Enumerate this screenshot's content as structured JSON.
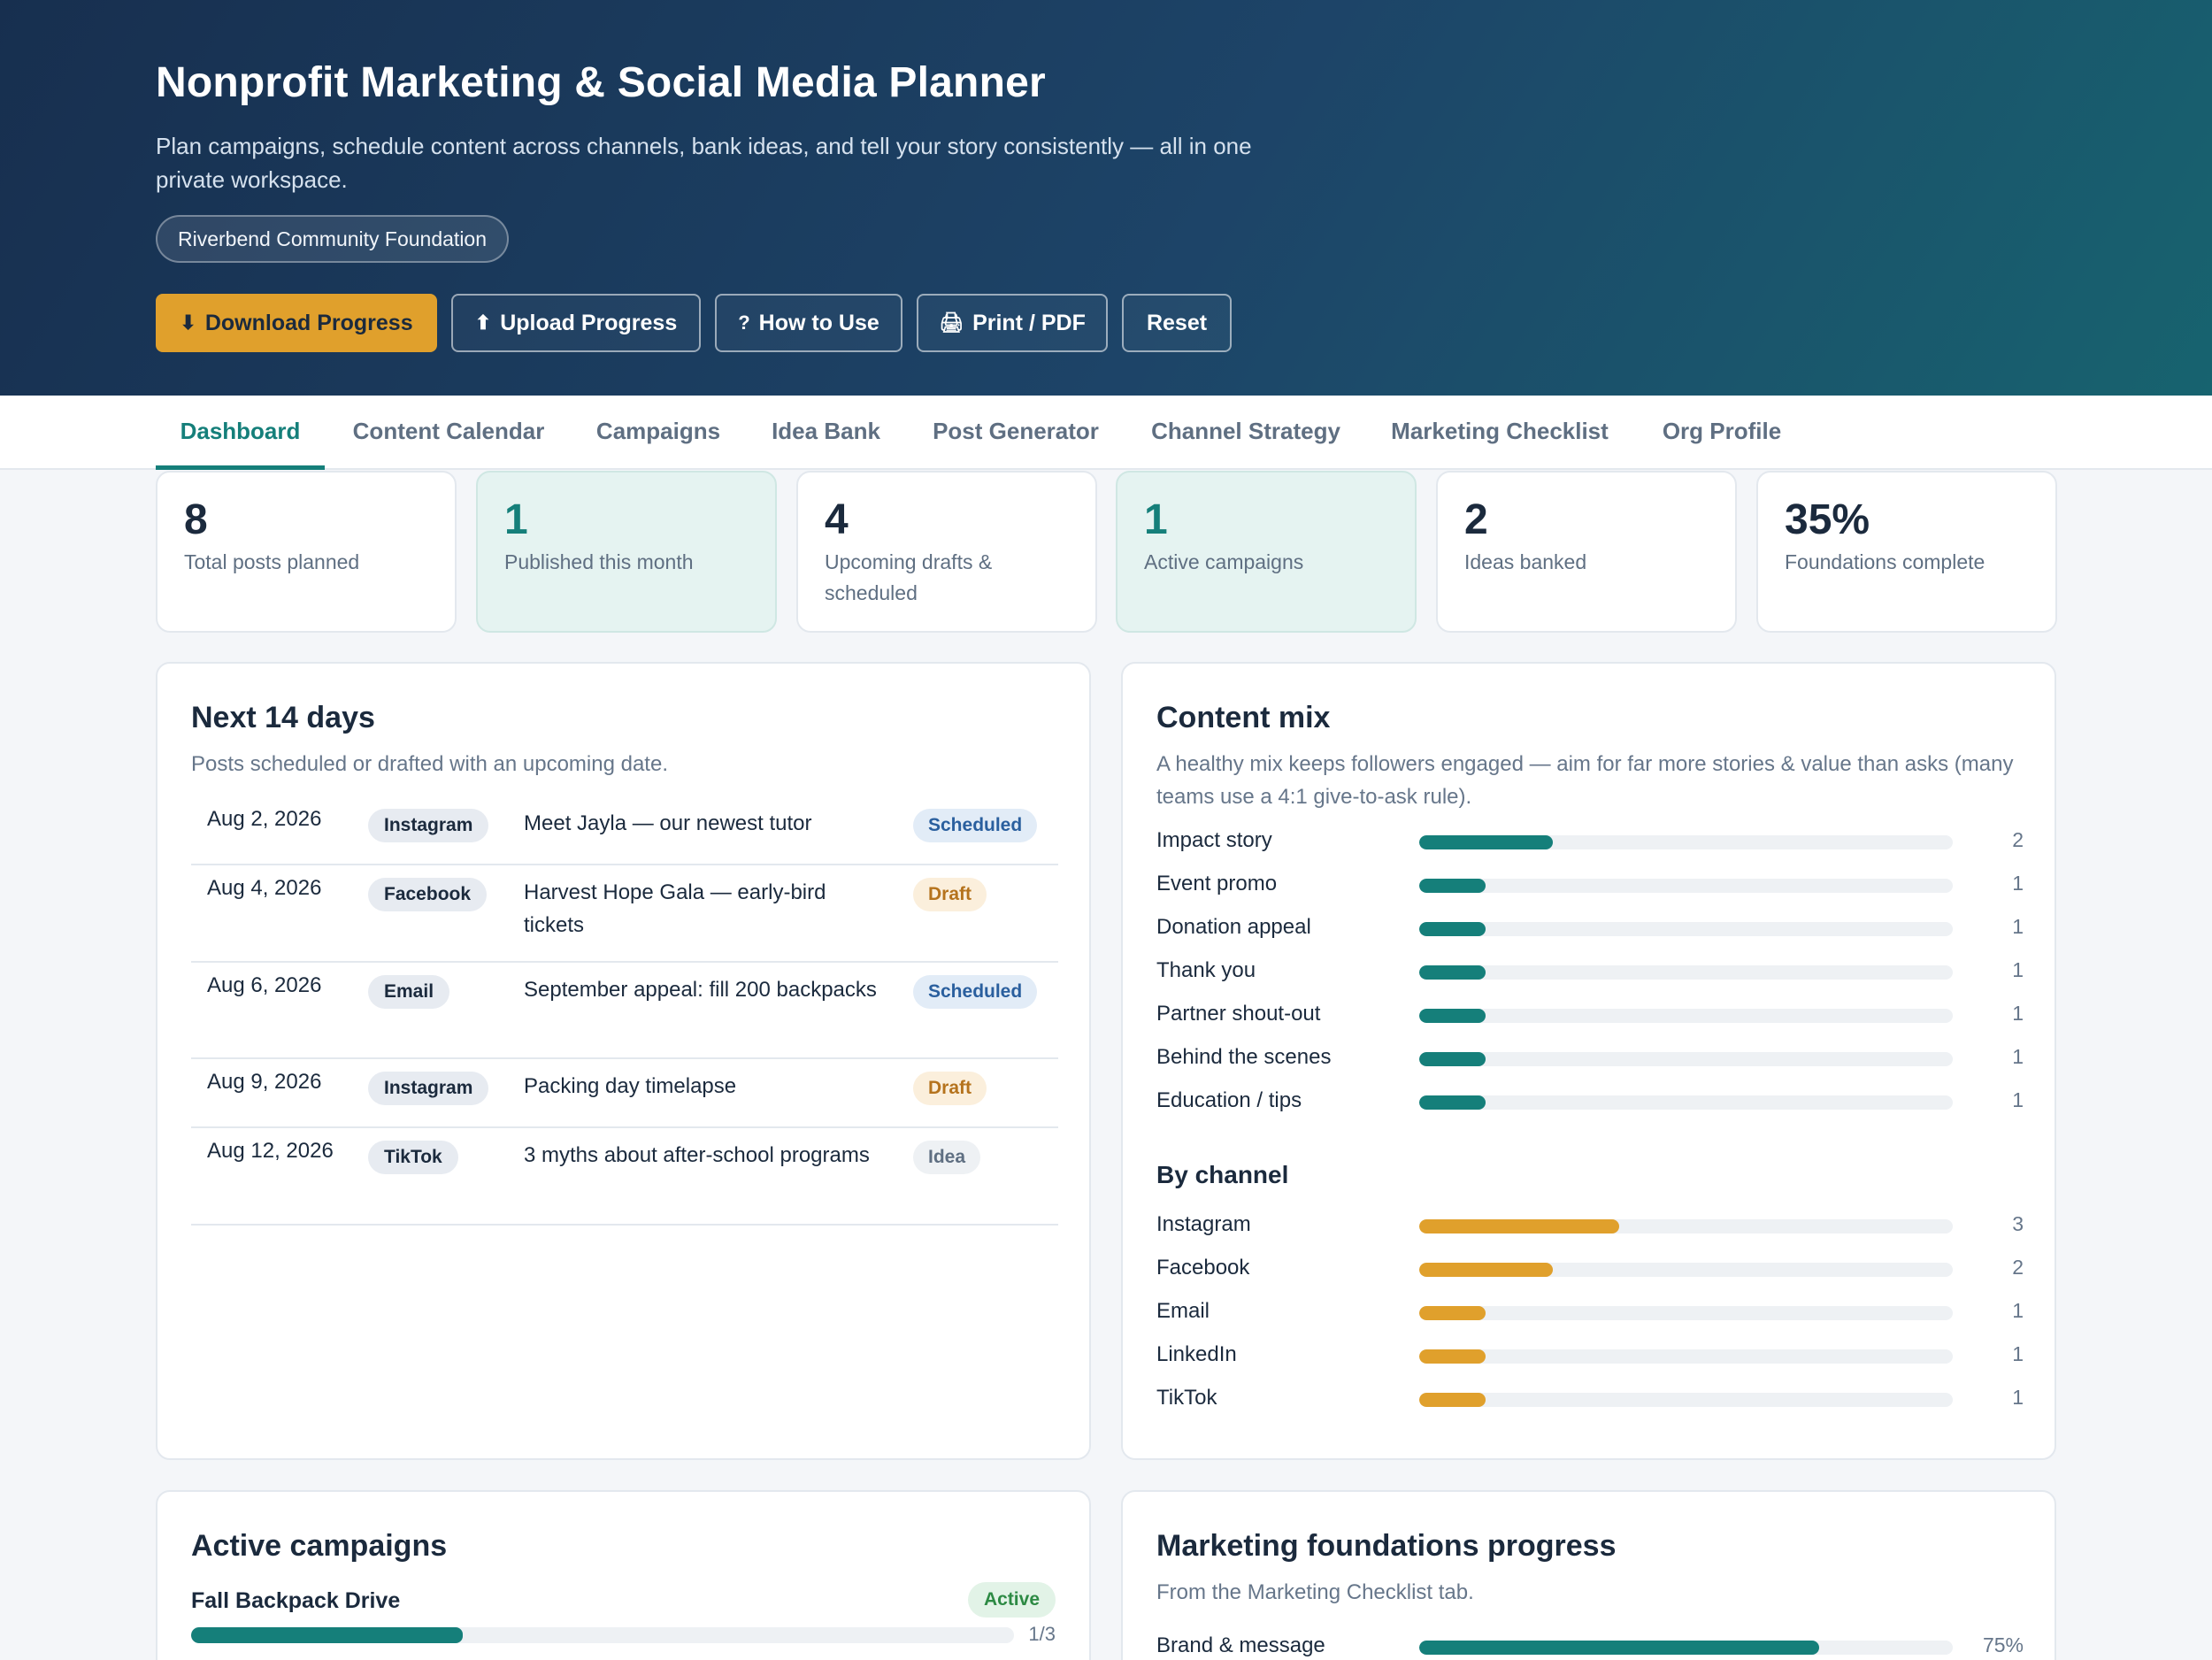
{
  "header": {
    "title": "Nonprofit Marketing & Social Media Planner",
    "subtitle": "Plan campaigns, schedule content across channels, bank ideas, and tell your story consistently — all in one private workspace.",
    "org_name": "Riverbend Community Foundation",
    "buttons": {
      "download": "Download Progress",
      "upload": "Upload Progress",
      "how_to": "How to Use",
      "print": "Print / PDF",
      "reset": "Reset"
    },
    "icons": {
      "download": "download-arrow-icon",
      "upload": "upload-arrow-icon",
      "how_to": "question-mark-icon",
      "print": "printer-icon"
    }
  },
  "tabs": [
    {
      "label": "Dashboard",
      "active": true
    },
    {
      "label": "Content Calendar"
    },
    {
      "label": "Campaigns"
    },
    {
      "label": "Idea Bank"
    },
    {
      "label": "Post Generator"
    },
    {
      "label": "Channel Strategy"
    },
    {
      "label": "Marketing Checklist"
    },
    {
      "label": "Org Profile"
    }
  ],
  "stats": [
    {
      "value": "8",
      "label": "Total posts planned"
    },
    {
      "value": "1",
      "label": "Published this month"
    },
    {
      "value": "4",
      "label": "Upcoming drafts & scheduled"
    },
    {
      "value": "1",
      "label": "Active campaigns"
    },
    {
      "value": "2",
      "label": "Ideas banked"
    },
    {
      "value": "35%",
      "label": "Foundations complete"
    }
  ],
  "upcoming": {
    "title": "Next 14 days",
    "subtitle": "Posts scheduled or drafted with an upcoming date.",
    "rows": [
      {
        "date": "Aug 2, 2026",
        "channel": "Instagram",
        "title": "Meet Jayla — our newest tutor",
        "status": "Scheduled"
      },
      {
        "date": "Aug 4, 2026",
        "channel": "Facebook",
        "title": "Harvest Hope Gala — early-bird tickets",
        "status": "Draft"
      },
      {
        "date": "Aug 6, 2026",
        "channel": "Email",
        "title": "September appeal: fill 200 backpacks",
        "status": "Scheduled"
      },
      {
        "date": "Aug 9, 2026",
        "channel": "Instagram",
        "title": "Packing day timelapse",
        "status": "Draft"
      },
      {
        "date": "Aug 12, 2026",
        "channel": "TikTok",
        "title": "3 myths about after-school programs",
        "status": "Idea"
      }
    ]
  },
  "content_mix": {
    "title": "Content mix",
    "subtitle": "A healthy mix keeps followers engaged — aim for far more stories & value than asks (many teams use a 4:1 give-to-ask rule).",
    "max": 8,
    "types": [
      {
        "label": "Impact story",
        "count": 2
      },
      {
        "label": "Event promo",
        "count": 1
      },
      {
        "label": "Donation appeal",
        "count": 1
      },
      {
        "label": "Thank you",
        "count": 1
      },
      {
        "label": "Partner shout-out",
        "count": 1
      },
      {
        "label": "Behind the scenes",
        "count": 1
      },
      {
        "label": "Education / tips",
        "count": 1
      }
    ],
    "by_channel_title": "By channel",
    "channels": [
      {
        "label": "Instagram",
        "count": 3
      },
      {
        "label": "Facebook",
        "count": 2
      },
      {
        "label": "Email",
        "count": 1
      },
      {
        "label": "LinkedIn",
        "count": 1
      },
      {
        "label": "TikTok",
        "count": 1
      }
    ]
  },
  "campaigns": {
    "title": "Active campaigns",
    "items": [
      {
        "name": "Fall Backpack Drive",
        "status": "Active",
        "progress_text": "1/3",
        "progress": 0.33
      }
    ]
  },
  "foundations": {
    "title": "Marketing foundations progress",
    "subtitle": "From the Marketing Checklist tab.",
    "items": [
      {
        "label": "Brand & message",
        "percent": 75,
        "percent_text": "75%"
      }
    ]
  },
  "colors": {
    "accent": "#157f7a",
    "gold": "#e0a02c",
    "header_dark": "#172f4f",
    "header_teal": "#17636f"
  }
}
